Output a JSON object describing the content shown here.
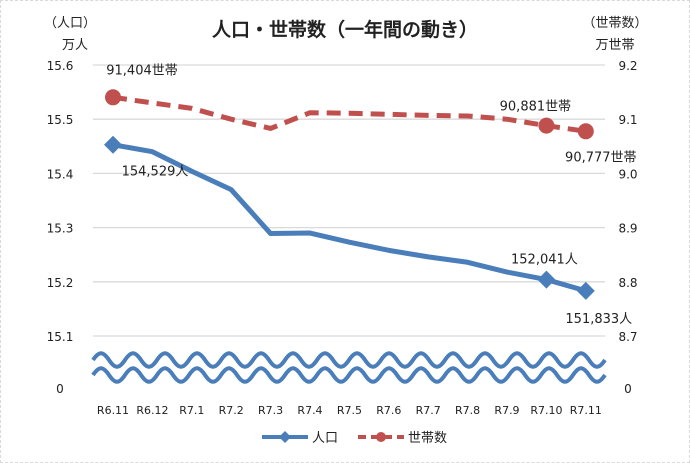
{
  "chart_data": {
    "type": "line",
    "title": "人口・世帯数（一年間の動き）",
    "left_axis": {
      "label_line1": "（人口）",
      "label_line2": "万人",
      "ticks": [
        "15.6",
        "15.5",
        "15.4",
        "15.3",
        "15.2",
        "15.1",
        "0"
      ],
      "range": [
        15.1,
        15.6
      ],
      "broken": true
    },
    "right_axis": {
      "label_line1": "（世帯数）",
      "label_line2": "万世帯",
      "ticks": [
        "9.2",
        "9.1",
        "9.0",
        "8.9",
        "8.8",
        "8.7",
        "0"
      ],
      "range": [
        8.7,
        9.2
      ],
      "broken": true
    },
    "categories": [
      "R6.11",
      "R6.12",
      "R7.1",
      "R7.2",
      "R7.3",
      "R7.4",
      "R7.5",
      "R7.6",
      "R7.7",
      "R7.8",
      "R7.9",
      "R7.10",
      "R7.11"
    ],
    "grid": true,
    "legend_position": "bottom",
    "series": [
      {
        "name": "人口",
        "axis": "left",
        "color": "#4a7ebb",
        "style": "solid",
        "marker": "diamond",
        "values": [
          15.4529,
          15.44,
          15.404,
          15.37,
          15.289,
          15.29,
          15.273,
          15.258,
          15.246,
          15.236,
          15.218,
          15.2041,
          15.1833
        ],
        "labels": [
          {
            "index": 0,
            "text": "154,529人"
          },
          {
            "index": 11,
            "text": "152,041人"
          },
          {
            "index": 12,
            "text": "151,833人"
          }
        ]
      },
      {
        "name": "世帯数",
        "axis": "right",
        "color": "#c0504d",
        "style": "dashed",
        "marker": "circle",
        "values": [
          9.1404,
          9.13,
          9.12,
          9.1,
          9.083,
          9.112,
          9.111,
          9.109,
          9.107,
          9.106,
          9.1,
          9.0881,
          9.0777
        ],
        "labels": [
          {
            "index": 0,
            "text": "91,404世帯"
          },
          {
            "index": 11,
            "text": "90,881世帯"
          },
          {
            "index": 12,
            "text": "90,777世帯"
          }
        ]
      }
    ]
  }
}
